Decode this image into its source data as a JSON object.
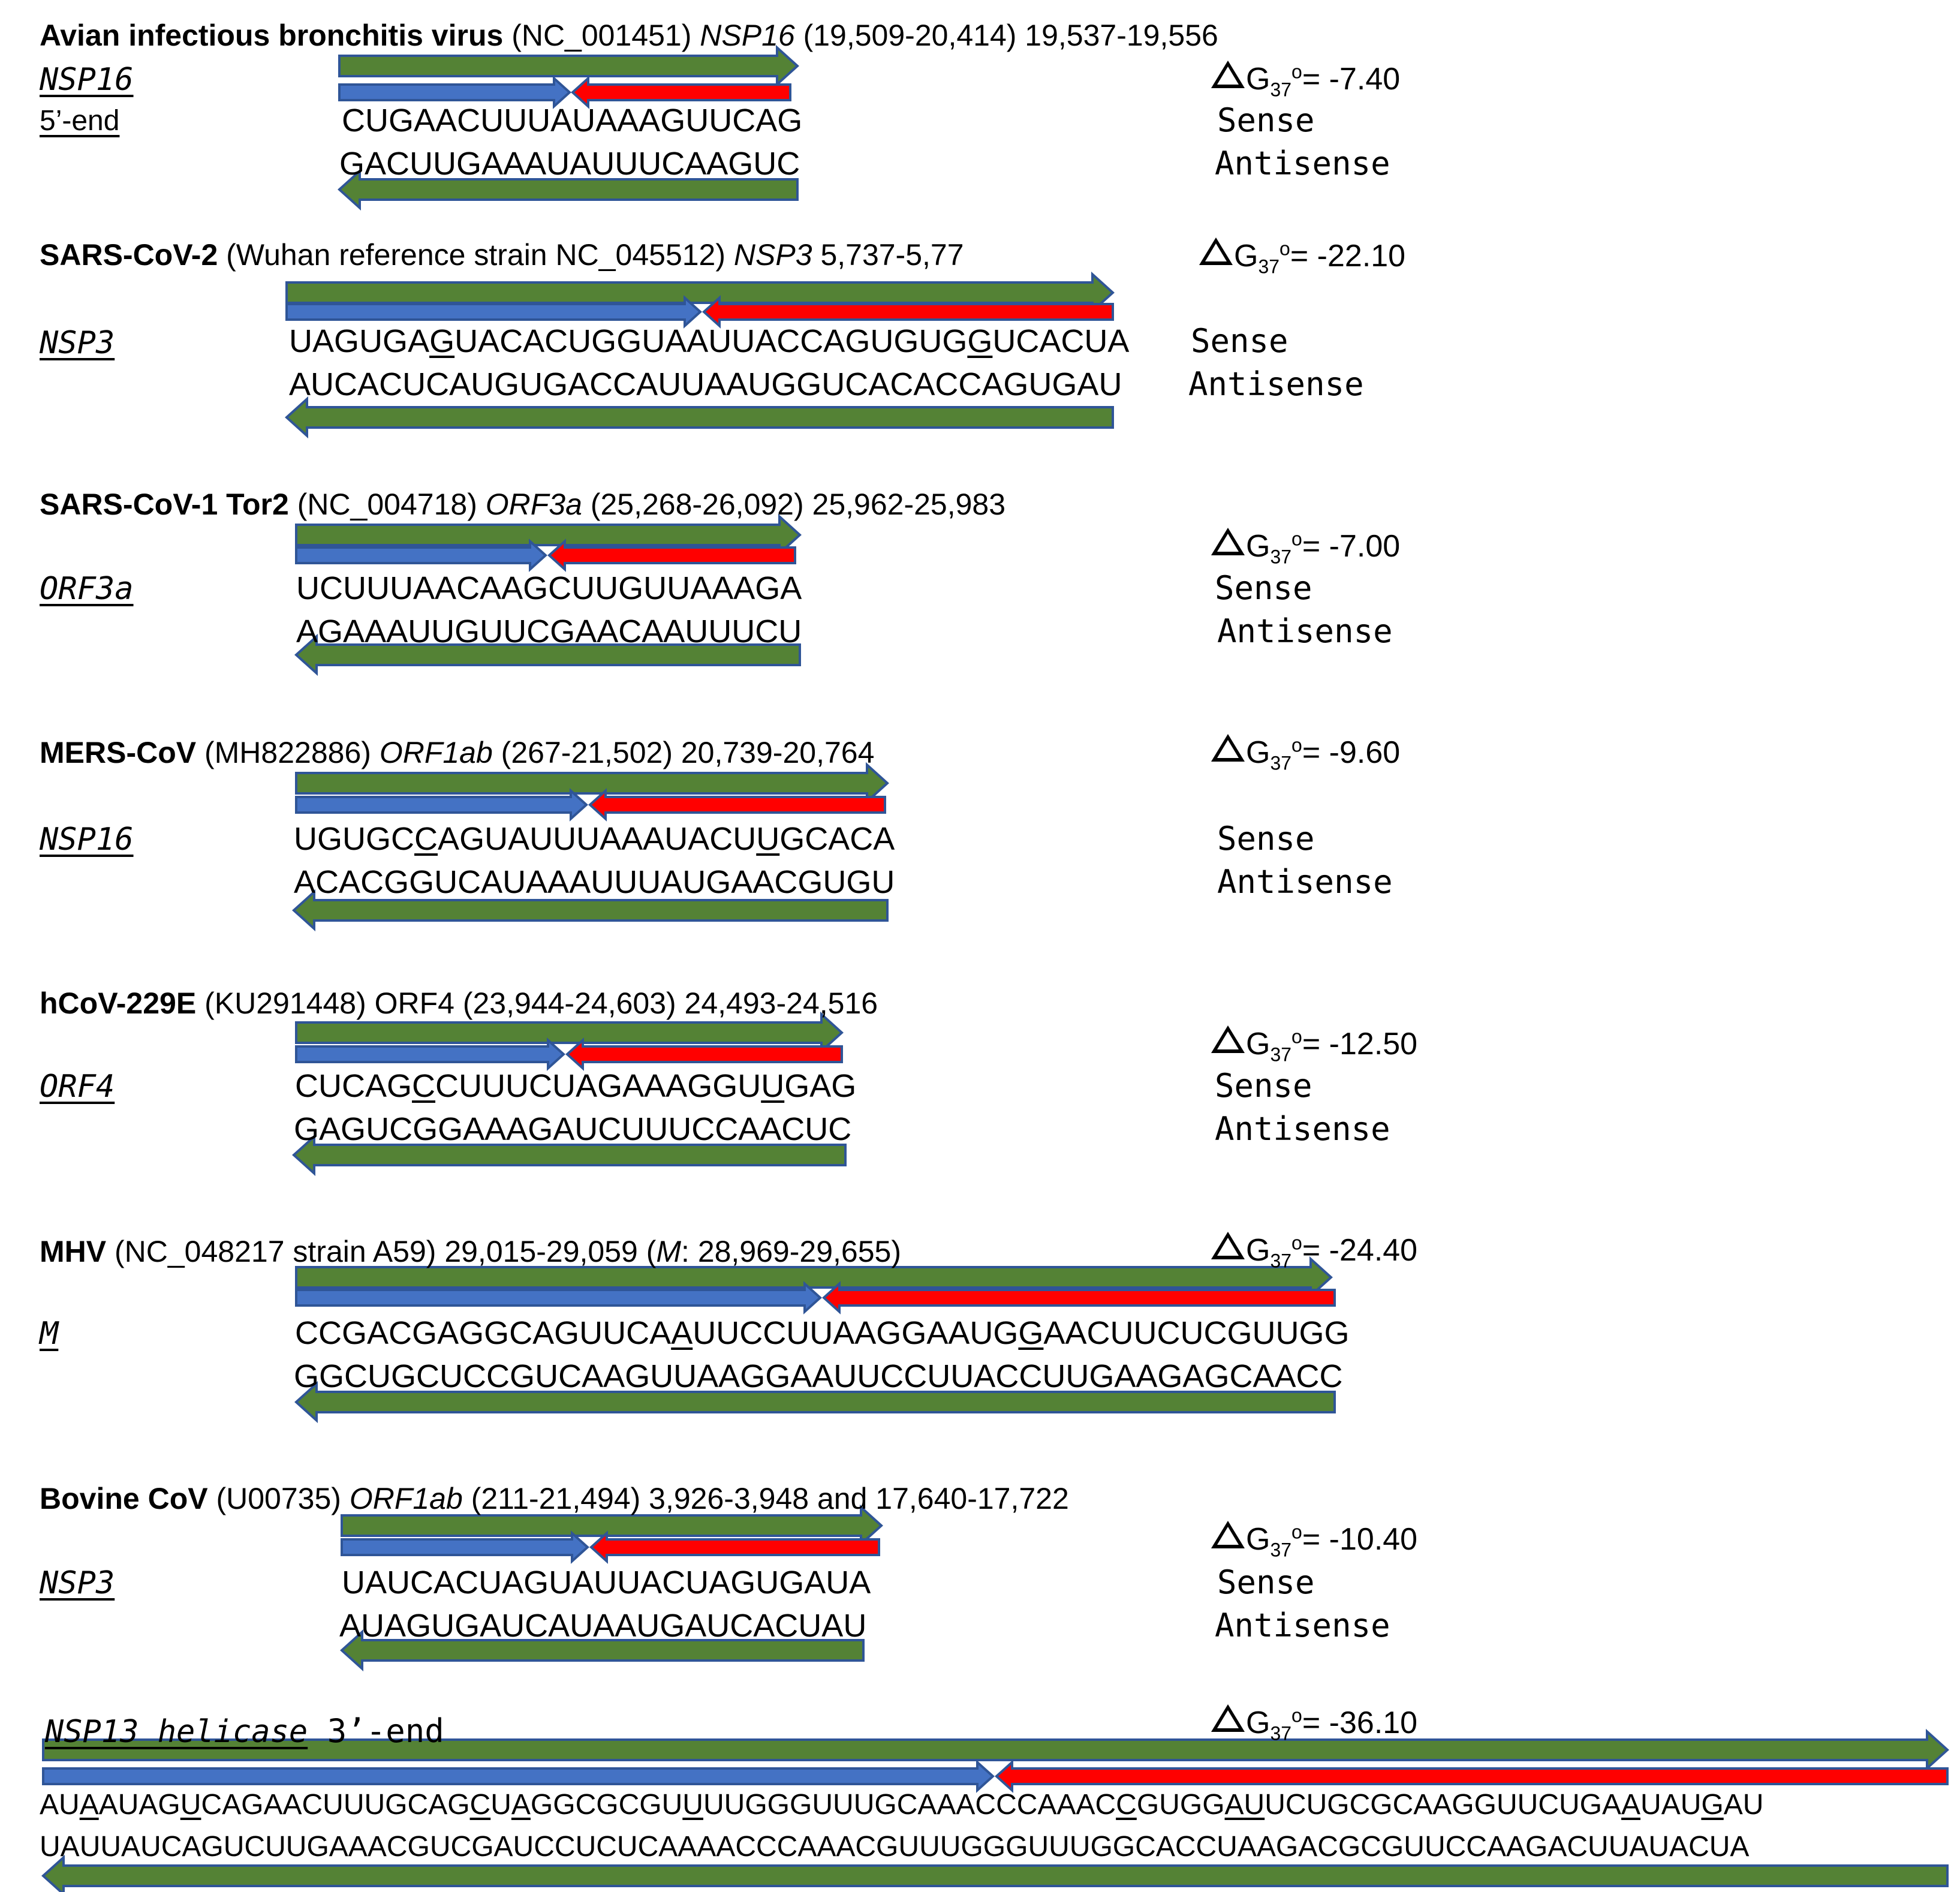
{
  "colors": {
    "green": "#548235",
    "blue": "#4472c4",
    "red": "#ff0000",
    "outline": "#2f5597"
  },
  "blocks": [
    {
      "id": "ibv",
      "header": [
        {
          "text": "Avian infectious bronchitis virus",
          "style": "b"
        },
        {
          "text": " (NC_001451) ",
          "style": ""
        },
        {
          "text": "NSP16",
          "style": "i"
        },
        {
          "text": " (19,509-20,414) 19,537-19,556",
          "style": ""
        }
      ],
      "gene_lines": [
        "NSP16",
        "5’-end"
      ],
      "sense": "CUGAACUUUAUAAAGUUCAG",
      "sense_underline": [],
      "antisense": "GACUUGAAAUAUUUCAAGUC",
      "antisense_underline": [],
      "dg_value": "= -7.40",
      "sense_label": "Sense",
      "antisense_label": "Antisense"
    },
    {
      "id": "sars2",
      "header": [
        {
          "text": "SARS-CoV-2",
          "style": "b"
        },
        {
          "text": " (Wuhan reference strain NC_045512) ",
          "style": ""
        },
        {
          "text": "NSP3",
          "style": "i"
        },
        {
          "text": " 5,737-5,77",
          "style": ""
        }
      ],
      "gene_lines": [
        "NSP3"
      ],
      "sense": "UAGUGAGUACACUGGUAAUUACCAGUGUGGUCACUA",
      "sense_underline": [
        6,
        29
      ],
      "antisense": "AUCACUCAUGUGACCAUUAAUGGUCACACCAGUGAU",
      "antisense_underline": [],
      "dg_value": "= -22.10",
      "sense_label": "Sense",
      "antisense_label": "Antisense"
    },
    {
      "id": "sars1",
      "header": [
        {
          "text": "SARS-CoV-1 Tor2",
          "style": "b"
        },
        {
          "text": " (NC_004718) ",
          "style": ""
        },
        {
          "text": "ORF3a",
          "style": "i"
        },
        {
          "text": " (25,268-26,092) 25,962-25,983",
          "style": ""
        }
      ],
      "gene_lines": [
        "ORF3a"
      ],
      "sense": "UCUUUAACAAGCUUGUUAAAGA",
      "sense_underline": [],
      "antisense": "AGAAAUUGUUCGAACAAUUUCU",
      "antisense_underline": [],
      "dg_value": "= -7.00",
      "sense_label": "Sense",
      "antisense_label": "Antisense"
    },
    {
      "id": "mers",
      "header": [
        {
          "text": "MERS-CoV",
          "style": "b"
        },
        {
          "text": " (MH822886) ",
          "style": ""
        },
        {
          "text": "ORF1ab",
          "style": "i"
        },
        {
          "text": " (267-21,502) 20,739-20,764",
          "style": ""
        }
      ],
      "gene_lines": [
        "NSP16"
      ],
      "sense": "UGUGCCAGUAUUUAAAUACUUGCACA",
      "sense_underline": [
        5,
        20
      ],
      "antisense": "ACACGGUCAUAAAUUUAUGAACGUGU",
      "antisense_underline": [],
      "dg_value": "= -9.60",
      "sense_label": "Sense",
      "antisense_label": "Antisense"
    },
    {
      "id": "229e",
      "header": [
        {
          "text": "hCoV-229E",
          "style": "b"
        },
        {
          "text": " (KU291448) ORF4 (23,944-24,603) 24,493-24,516",
          "style": ""
        }
      ],
      "gene_lines": [
        "ORF4"
      ],
      "sense": "CUCAGCCUUUCUAGAAAGGUUGAG",
      "sense_underline": [
        5,
        20
      ],
      "antisense": "GAGUCGGAAAGAUCUUUCCAACUC",
      "antisense_underline": [],
      "dg_value": "= -12.50",
      "sense_label": "Sense",
      "antisense_label": "Antisense"
    },
    {
      "id": "mhv",
      "header": [
        {
          "text": "MHV",
          "style": "b"
        },
        {
          "text": " (NC_048217 strain A59) 29,015-29,059 (",
          "style": ""
        },
        {
          "text": "M",
          "style": "i"
        },
        {
          "text": ": 28,969-29,655)",
          "style": ""
        }
      ],
      "gene_lines": [
        "M"
      ],
      "sense": "CCGACGAGGCAGUUCAAUUCCUUAAGGAAUGGAACUUCUCGUUGG",
      "sense_underline": [
        16,
        31
      ],
      "antisense": "GGCUGCUCCGUCAAGUUAAGGAAUUCCUUACCUUGAAGAGCAACC",
      "antisense_underline": [],
      "dg_value": "= -24.40",
      "sense_label": "",
      "antisense_label": ""
    },
    {
      "id": "bovine",
      "header": [
        {
          "text": "Bovine CoV",
          "style": "b"
        },
        {
          "text": " (U00735) ",
          "style": ""
        },
        {
          "text": "ORF1ab",
          "style": "i"
        },
        {
          "text": " (211-21,494) 3,926-3,948 and 17,640-17,722",
          "style": ""
        }
      ],
      "gene_lines": [
        "NSP3"
      ],
      "sense": "UAUCACUAGUAUUACUAGUGAUA",
      "sense_underline": [],
      "antisense": "AUAGUGAUCAUAAUGAUCACUAU",
      "antisense_underline": [],
      "dg_value": "= -10.40",
      "sense_label": "Sense",
      "antisense_label": "Antisense"
    },
    {
      "id": "nsp13",
      "header_gene": "NSP13 helicase",
      "header_suffix": " 3’-end",
      "sense": "AUAAUAGUCAGAACUUUGCAGCUAGGCGCGUUUUGGGUUUGCAAACCCAAACCGUGGAUUCUGCGCAAGGUUCUGAAUAUGAU",
      "sense_underline": [
        2,
        7,
        21,
        23,
        31,
        52,
        57,
        58,
        76,
        80
      ],
      "antisense": "UAUUAUCAGUCUUGAAACGUCGAUCCUCUCAAAACCCAAACGUUUGGGUUUGGCACCUAAGACGCGUUCCAAGACUUAUACUA",
      "antisense_underline": [],
      "dg_value": "= -36.10"
    }
  ],
  "dg_symbol_sub": "37",
  "dg_symbol_sup": "o",
  "dg_letter": "G"
}
